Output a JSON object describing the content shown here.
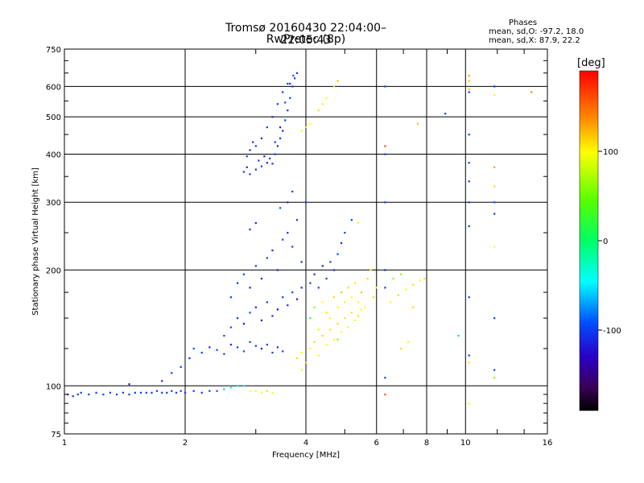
{
  "header": {
    "title": "Tromsø 20160430 22:04:00–22:05:43",
    "subtitle": "RwPretec (8p)"
  },
  "phases": {
    "heading": "Phases",
    "o_mode": "mean, sd,O: -97.2, 18.0",
    "x_mode": "mean, sd,X: 87.9, 22.2"
  },
  "colorbar": {
    "label": "[deg]",
    "ticks": [
      "100",
      "0",
      "-100"
    ],
    "tick_values": [
      100,
      0,
      -100
    ],
    "range": [
      -190,
      190
    ]
  },
  "chart_data": {
    "type": "scatter",
    "title": "Tromsø 20160430 22:04:00–22:05:43",
    "subtitle": "RwPretec (8p)",
    "xlabel": "Frequency [MHz]",
    "ylabel": "Stationary phase Virtual Height [km]",
    "x_scale": "log",
    "y_scale": "log",
    "xlim": [
      1,
      16
    ],
    "ylim": [
      75,
      750
    ],
    "x_ticks": [
      1,
      2,
      4,
      6,
      8,
      10,
      16
    ],
    "x_tick_labels": [
      "1",
      "2",
      "4",
      "6",
      "8",
      "10",
      "16"
    ],
    "x_minor_ticks": [
      3,
      5,
      7,
      9,
      12,
      14
    ],
    "y_ticks": [
      75,
      100,
      200,
      300,
      400,
      500,
      600,
      750
    ],
    "y_tick_labels": [
      "75",
      "100",
      "200",
      "300",
      "400",
      "500",
      "600",
      "750"
    ],
    "grid": "major",
    "color_by": "phase [deg]",
    "points": [
      [
        1.02,
        95,
        -100
      ],
      [
        1.05,
        94,
        -100
      ],
      [
        1.08,
        95,
        -100
      ],
      [
        1.1,
        96,
        -100
      ],
      [
        1.15,
        95,
        -100
      ],
      [
        1.2,
        96,
        -100
      ],
      [
        1.25,
        95,
        -100
      ],
      [
        1.3,
        96,
        -100
      ],
      [
        1.35,
        95,
        -100
      ],
      [
        1.4,
        96,
        -100
      ],
      [
        1.45,
        95,
        -100
      ],
      [
        1.5,
        96,
        -100
      ],
      [
        1.55,
        96,
        -100
      ],
      [
        1.6,
        96,
        -100
      ],
      [
        1.65,
        96,
        -100
      ],
      [
        1.7,
        97,
        -100
      ],
      [
        1.75,
        96,
        -100
      ],
      [
        1.8,
        96,
        -100
      ],
      [
        1.85,
        97,
        -100
      ],
      [
        1.9,
        96,
        -100
      ],
      [
        1.95,
        97,
        -100
      ],
      [
        2.0,
        96,
        -100
      ],
      [
        2.1,
        97,
        -100
      ],
      [
        2.2,
        96,
        -100
      ],
      [
        2.3,
        97,
        -100
      ],
      [
        2.4,
        97,
        -90
      ],
      [
        2.5,
        98,
        -60
      ],
      [
        2.6,
        99,
        -40
      ],
      [
        2.7,
        100,
        -20
      ],
      [
        2.8,
        100,
        -50
      ],
      [
        2.9,
        97,
        100
      ],
      [
        3.0,
        97,
        100
      ],
      [
        3.1,
        96,
        100
      ],
      [
        3.2,
        97,
        110
      ],
      [
        3.3,
        96,
        100
      ],
      [
        1.45,
        101,
        -120
      ],
      [
        1.75,
        103,
        -110
      ],
      [
        1.85,
        108,
        -100
      ],
      [
        1.95,
        112,
        -100
      ],
      [
        2.05,
        118,
        -110
      ],
      [
        2.1,
        125,
        -90
      ],
      [
        2.2,
        122,
        -100
      ],
      [
        2.3,
        126,
        -110
      ],
      [
        2.4,
        124,
        -90
      ],
      [
        2.5,
        121,
        -100
      ],
      [
        2.6,
        128,
        -110
      ],
      [
        2.7,
        126,
        -100
      ],
      [
        2.8,
        123,
        -90
      ],
      [
        2.9,
        130,
        -100
      ],
      [
        3.0,
        127,
        -100
      ],
      [
        3.1,
        125,
        -120
      ],
      [
        3.2,
        128,
        -100
      ],
      [
        3.3,
        122,
        -100
      ],
      [
        3.4,
        126,
        -110
      ],
      [
        3.5,
        123,
        -100
      ],
      [
        2.5,
        135,
        -100
      ],
      [
        2.6,
        142,
        -90
      ],
      [
        2.7,
        150,
        -110
      ],
      [
        2.8,
        145,
        -120
      ],
      [
        2.9,
        155,
        -100
      ],
      [
        3.0,
        160,
        -110
      ],
      [
        3.1,
        148,
        -120
      ],
      [
        3.2,
        165,
        -100
      ],
      [
        3.3,
        152,
        -110
      ],
      [
        3.4,
        158,
        -130
      ],
      [
        3.5,
        170,
        -100
      ],
      [
        3.6,
        162,
        -110
      ],
      [
        3.7,
        175,
        -100
      ],
      [
        3.8,
        168,
        -120
      ],
      [
        3.9,
        180,
        -110
      ],
      [
        2.6,
        170,
        -100
      ],
      [
        2.7,
        185,
        -110
      ],
      [
        2.8,
        195,
        -100
      ],
      [
        2.9,
        180,
        -120
      ],
      [
        3.0,
        205,
        -100
      ],
      [
        3.1,
        190,
        -110
      ],
      [
        3.2,
        215,
        -100
      ],
      [
        3.3,
        225,
        -110
      ],
      [
        3.4,
        200,
        -120
      ],
      [
        3.5,
        240,
        -100
      ],
      [
        3.6,
        250,
        -110
      ],
      [
        3.7,
        230,
        -100
      ],
      [
        3.8,
        270,
        -100
      ],
      [
        3.9,
        210,
        -110
      ],
      [
        4.0,
        300,
        -100
      ],
      [
        3.6,
        300,
        -110
      ],
      [
        3.7,
        320,
        -100
      ],
      [
        3.45,
        290,
        -90
      ],
      [
        2.9,
        255,
        -100
      ],
      [
        3.0,
        265,
        -110
      ],
      [
        4.1,
        185,
        -100
      ],
      [
        4.2,
        195,
        -110
      ],
      [
        4.3,
        180,
        -100
      ],
      [
        4.4,
        205,
        -110
      ],
      [
        4.5,
        190,
        -100
      ],
      [
        4.6,
        210,
        -100
      ],
      [
        4.7,
        200,
        -110
      ],
      [
        4.8,
        220,
        -100
      ],
      [
        4.9,
        235,
        -110
      ],
      [
        5.0,
        250,
        -100
      ],
      [
        5.2,
        270,
        -100
      ],
      [
        5.4,
        265,
        100
      ],
      [
        4.1,
        150,
        20
      ],
      [
        4.2,
        160,
        60
      ],
      [
        4.3,
        140,
        90
      ],
      [
        4.4,
        165,
        100
      ],
      [
        4.5,
        155,
        110
      ],
      [
        4.6,
        150,
        100
      ],
      [
        4.7,
        170,
        110
      ],
      [
        4.8,
        160,
        100
      ],
      [
        4.9,
        175,
        120
      ],
      [
        5.0,
        165,
        100
      ],
      [
        5.1,
        180,
        110
      ],
      [
        5.2,
        170,
        100
      ],
      [
        5.3,
        185,
        110
      ],
      [
        5.4,
        165,
        100
      ],
      [
        5.5,
        175,
        120
      ],
      [
        5.6,
        160,
        100
      ],
      [
        5.7,
        190,
        110
      ],
      [
        5.8,
        200,
        100
      ],
      [
        5.9,
        170,
        110
      ],
      [
        6.0,
        180,
        100
      ],
      [
        3.8,
        118,
        110
      ],
      [
        3.9,
        122,
        100
      ],
      [
        4.0,
        115,
        110
      ],
      [
        4.1,
        125,
        100
      ],
      [
        4.2,
        130,
        110
      ],
      [
        4.3,
        120,
        100
      ],
      [
        4.4,
        135,
        110
      ],
      [
        4.5,
        128,
        100
      ],
      [
        4.6,
        140,
        110
      ],
      [
        4.7,
        132,
        100
      ],
      [
        4.8,
        145,
        110
      ],
      [
        4.9,
        138,
        100
      ],
      [
        5.0,
        150,
        110
      ],
      [
        5.1,
        142,
        100
      ],
      [
        5.2,
        155,
        110
      ],
      [
        5.3,
        148,
        100
      ],
      [
        5.4,
        152,
        110
      ],
      [
        5.5,
        158,
        100
      ],
      [
        6.5,
        165,
        100
      ],
      [
        6.8,
        172,
        110
      ],
      [
        7.1,
        178,
        100
      ],
      [
        7.4,
        183,
        110
      ],
      [
        7.7,
        188,
        100
      ],
      [
        7.9,
        190,
        110
      ],
      [
        6.6,
        190,
        60
      ],
      [
        6.9,
        195,
        70
      ],
      [
        4.8,
        132,
        60
      ],
      [
        3.9,
        110,
        100
      ],
      [
        2.8,
        360,
        -100
      ],
      [
        2.85,
        370,
        -110
      ],
      [
        2.9,
        355,
        -100
      ],
      [
        3.0,
        365,
        -110
      ],
      [
        3.1,
        372,
        -100
      ],
      [
        3.2,
        380,
        -110
      ],
      [
        3.25,
        390,
        -100
      ],
      [
        3.3,
        378,
        -110
      ],
      [
        3.35,
        400,
        -100
      ],
      [
        3.4,
        420,
        -110
      ],
      [
        3.45,
        440,
        -100
      ],
      [
        3.5,
        460,
        -110
      ],
      [
        3.55,
        490,
        -100
      ],
      [
        3.6,
        520,
        -110
      ],
      [
        3.65,
        560,
        -100
      ],
      [
        3.7,
        600,
        -110
      ],
      [
        3.75,
        630,
        -100
      ],
      [
        3.8,
        650,
        -110
      ],
      [
        3.72,
        640,
        -90
      ],
      [
        3.6,
        610,
        -100
      ],
      [
        3.5,
        580,
        -110
      ],
      [
        3.4,
        540,
        -100
      ],
      [
        3.3,
        500,
        -110
      ],
      [
        3.2,
        470,
        -100
      ],
      [
        3.1,
        440,
        -110
      ],
      [
        3.0,
        420,
        -100
      ],
      [
        2.9,
        410,
        -110
      ],
      [
        2.85,
        395,
        -100
      ],
      [
        2.95,
        430,
        -110
      ],
      [
        3.05,
        385,
        -100
      ],
      [
        3.15,
        395,
        -110
      ],
      [
        3.35,
        430,
        -100
      ],
      [
        3.45,
        470,
        -110
      ],
      [
        3.55,
        545,
        -100
      ],
      [
        3.65,
        610,
        -110
      ],
      [
        3.9,
        460,
        100
      ],
      [
        4.0,
        470,
        110
      ],
      [
        4.1,
        480,
        100
      ],
      [
        4.3,
        520,
        110
      ],
      [
        4.5,
        560,
        100
      ],
      [
        4.7,
        600,
        110
      ],
      [
        4.8,
        620,
        120
      ],
      [
        4.4,
        540,
        90
      ],
      [
        6.3,
        600,
        -100
      ],
      [
        6.3,
        420,
        160
      ],
      [
        6.3,
        400,
        -100
      ],
      [
        6.3,
        300,
        -100
      ],
      [
        6.3,
        200,
        -110
      ],
      [
        6.3,
        180,
        -100
      ],
      [
        6.3,
        105,
        -100
      ],
      [
        6.3,
        95,
        160
      ],
      [
        7.6,
        480,
        120
      ],
      [
        8.9,
        510,
        -100
      ],
      [
        10.2,
        590,
        120
      ],
      [
        10.2,
        620,
        120
      ],
      [
        10.2,
        640,
        130
      ],
      [
        10.2,
        450,
        -100
      ],
      [
        10.2,
        380,
        -100
      ],
      [
        10.2,
        340,
        -100
      ],
      [
        10.2,
        300,
        -100
      ],
      [
        10.2,
        260,
        -100
      ],
      [
        10.2,
        170,
        -100
      ],
      [
        10.2,
        120,
        -100
      ],
      [
        10.2,
        115,
        110
      ],
      [
        10.2,
        90,
        100
      ],
      [
        10.2,
        580,
        -100
      ],
      [
        11.8,
        600,
        -100
      ],
      [
        11.8,
        570,
        100
      ],
      [
        11.8,
        370,
        130
      ],
      [
        11.8,
        330,
        110
      ],
      [
        11.8,
        300,
        -90
      ],
      [
        11.8,
        280,
        -100
      ],
      [
        11.8,
        230,
        100
      ],
      [
        11.8,
        150,
        -100
      ],
      [
        11.8,
        110,
        -100
      ],
      [
        11.8,
        105,
        60
      ],
      [
        9.6,
        135,
        -60
      ],
      [
        14.6,
        580,
        140
      ],
      [
        7.4,
        160,
        110
      ],
      [
        7.2,
        130,
        100
      ],
      [
        6.9,
        125,
        110
      ]
    ]
  }
}
